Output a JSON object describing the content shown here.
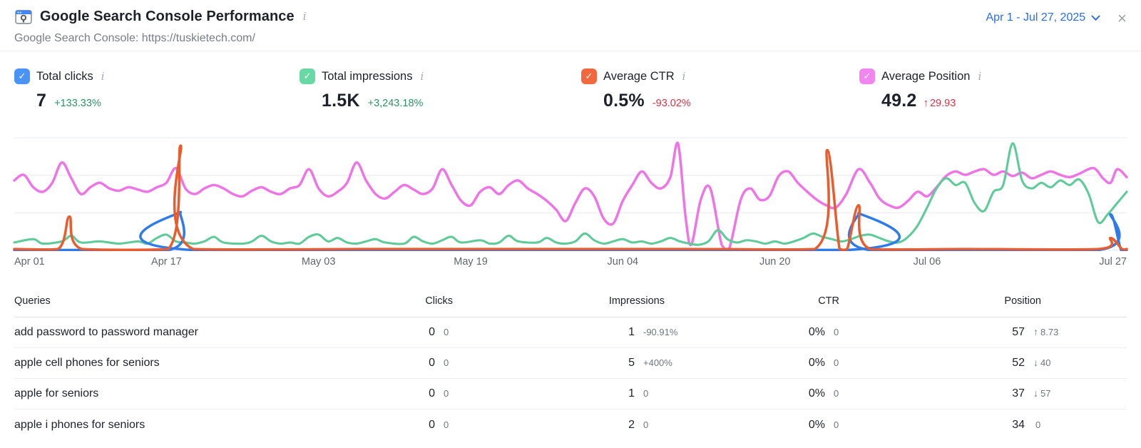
{
  "header": {
    "title": "Google Search Console Performance",
    "subtitle": "Google Search Console: https://tuskietech.com/",
    "date_range": "Apr 1 - Jul 27, 2025",
    "close_glyph": "×",
    "info_glyph": "i"
  },
  "colors": {
    "date_blue": "#2b6ce6",
    "clicks_box": "#4a93f7",
    "impressions_box": "#68d9a4",
    "ctr_box": "#f2683f",
    "position_box": "#f186f1",
    "clicks_line": "#2f7bea",
    "impressions_line": "#5ecb98",
    "ctr_line": "#e95c2d",
    "position_line": "#ed75e4",
    "green_text": "#2e9367",
    "red_text": "#d63547"
  },
  "metrics": [
    {
      "label": "Total clicks",
      "check": "✓",
      "value": "7",
      "delta": "+133.33%",
      "arrow": "",
      "delta_color": "green"
    },
    {
      "label": "Total impressions",
      "check": "✓",
      "value": "1.5K",
      "delta": "+3,243.18%",
      "arrow": "",
      "delta_color": "green"
    },
    {
      "label": "Average CTR",
      "check": "✓",
      "value": "0.5%",
      "delta": "-93.02%",
      "arrow": "",
      "delta_color": "red"
    },
    {
      "label": "Average Position",
      "check": "✓",
      "value": "49.2",
      "delta": "29.93",
      "arrow": "↑",
      "delta_color": "red"
    }
  ],
  "chart_data": {
    "type": "line",
    "title": "",
    "x_range": [
      "Apr 1, 2025",
      "Jul 27, 2025"
    ],
    "x_axis_labels": [
      "Apr 01",
      "Apr 17",
      "May 03",
      "May 19",
      "Jun 04",
      "Jun 20",
      "Jul 06",
      "Jul 27"
    ],
    "label_days": [
      0,
      16,
      32,
      48,
      64,
      80,
      96,
      117
    ],
    "grid": "4 horizontal gridlines, no y tick labels",
    "legend_position": "none (metric cards act as legend)",
    "y_scale": "normalized 0-1 per series",
    "series": [
      {
        "id": "position",
        "name": "Average Position",
        "color": "#ed75e4",
        "width": 3.5,
        "points": [
          [
            0,
            0.62
          ],
          [
            1,
            0.67
          ],
          [
            2,
            0.56
          ],
          [
            3,
            0.52
          ],
          [
            4,
            0.6
          ],
          [
            5,
            0.78
          ],
          [
            6,
            0.64
          ],
          [
            7,
            0.5
          ],
          [
            8,
            0.56
          ],
          [
            9,
            0.6
          ],
          [
            10,
            0.55
          ],
          [
            11,
            0.53
          ],
          [
            12,
            0.56
          ],
          [
            13,
            0.54
          ],
          [
            14,
            0.52
          ],
          [
            15,
            0.56
          ],
          [
            16,
            0.6
          ],
          [
            17,
            0.73
          ],
          [
            18,
            0.55
          ],
          [
            19,
            0.5
          ],
          [
            20,
            0.55
          ],
          [
            21,
            0.58
          ],
          [
            22,
            0.55
          ],
          [
            23,
            0.5
          ],
          [
            24,
            0.48
          ],
          [
            25,
            0.53
          ],
          [
            26,
            0.56
          ],
          [
            27,
            0.52
          ],
          [
            28,
            0.5
          ],
          [
            29,
            0.55
          ],
          [
            30,
            0.58
          ],
          [
            31,
            0.72
          ],
          [
            32,
            0.55
          ],
          [
            33,
            0.48
          ],
          [
            34,
            0.52
          ],
          [
            35,
            0.6
          ],
          [
            36,
            0.78
          ],
          [
            37,
            0.62
          ],
          [
            38,
            0.5
          ],
          [
            39,
            0.46
          ],
          [
            40,
            0.52
          ],
          [
            41,
            0.58
          ],
          [
            42,
            0.54
          ],
          [
            43,
            0.5
          ],
          [
            44,
            0.55
          ],
          [
            45,
            0.72
          ],
          [
            46,
            0.58
          ],
          [
            47,
            0.44
          ],
          [
            48,
            0.4
          ],
          [
            49,
            0.52
          ],
          [
            50,
            0.56
          ],
          [
            51,
            0.5
          ],
          [
            52,
            0.58
          ],
          [
            53,
            0.62
          ],
          [
            54,
            0.55
          ],
          [
            55,
            0.5
          ],
          [
            56,
            0.44
          ],
          [
            57,
            0.36
          ],
          [
            58,
            0.26
          ],
          [
            59,
            0.42
          ],
          [
            60,
            0.55
          ],
          [
            61,
            0.48
          ],
          [
            62,
            0.28
          ],
          [
            63,
            0.24
          ],
          [
            64,
            0.44
          ],
          [
            65,
            0.58
          ],
          [
            66,
            0.7
          ],
          [
            67,
            0.6
          ],
          [
            68,
            0.55
          ],
          [
            69,
            0.65
          ],
          [
            69.8,
            0.95
          ],
          [
            70.6,
            0.3
          ],
          [
            71.2,
            0.05
          ],
          [
            72.2,
            0.45
          ],
          [
            73.2,
            0.55
          ],
          [
            74.4,
            0.05
          ],
          [
            75.2,
            0.02
          ],
          [
            76.4,
            0.45
          ],
          [
            77.4,
            0.55
          ],
          [
            78.4,
            0.45
          ],
          [
            79.4,
            0.48
          ],
          [
            80.4,
            0.66
          ],
          [
            81.4,
            0.7
          ],
          [
            82.4,
            0.6
          ],
          [
            83.4,
            0.52
          ],
          [
            84.4,
            0.45
          ],
          [
            85.4,
            0.4
          ],
          [
            86.4,
            0.38
          ],
          [
            87.5,
            0.5
          ],
          [
            88.8,
            0.72
          ],
          [
            90,
            0.6
          ],
          [
            91,
            0.46
          ],
          [
            92,
            0.4
          ],
          [
            93,
            0.38
          ],
          [
            94,
            0.44
          ],
          [
            95,
            0.52
          ],
          [
            96,
            0.48
          ],
          [
            97,
            0.56
          ],
          [
            98,
            0.66
          ],
          [
            99,
            0.7
          ],
          [
            100,
            0.67
          ],
          [
            101,
            0.7
          ],
          [
            102,
            0.72
          ],
          [
            103,
            0.67
          ],
          [
            104,
            0.7
          ],
          [
            105,
            0.66
          ],
          [
            106,
            0.69
          ],
          [
            107,
            0.64
          ],
          [
            108,
            0.67
          ],
          [
            109,
            0.7
          ],
          [
            110,
            0.67
          ],
          [
            111,
            0.65
          ],
          [
            112,
            0.68
          ],
          [
            113.5,
            0.73
          ],
          [
            114.5,
            0.64
          ],
          [
            115.3,
            0.6
          ],
          [
            116,
            0.72
          ],
          [
            117,
            0.65
          ]
        ]
      },
      {
        "id": "impressions",
        "name": "Total impressions",
        "color": "#5ecb98",
        "width": 3.1,
        "points": [
          [
            0,
            0.07
          ],
          [
            2,
            0.1
          ],
          [
            3,
            0.06
          ],
          [
            5,
            0.08
          ],
          [
            6,
            0.13
          ],
          [
            7,
            0.07
          ],
          [
            9,
            0.08
          ],
          [
            11,
            0.06
          ],
          [
            13,
            0.08
          ],
          [
            14,
            0.06
          ],
          [
            15,
            0.11
          ],
          [
            16,
            0.14
          ],
          [
            17,
            0.08
          ],
          [
            18,
            0.07
          ],
          [
            19,
            0.06
          ],
          [
            20,
            0.08
          ],
          [
            21,
            0.12
          ],
          [
            22,
            0.07
          ],
          [
            24,
            0.06
          ],
          [
            25,
            0.08
          ],
          [
            26,
            0.13
          ],
          [
            27,
            0.08
          ],
          [
            28,
            0.06
          ],
          [
            29,
            0.07
          ],
          [
            30,
            0.06
          ],
          [
            31,
            0.12
          ],
          [
            32,
            0.14
          ],
          [
            33,
            0.08
          ],
          [
            34,
            0.11
          ],
          [
            35,
            0.07
          ],
          [
            36,
            0.06
          ],
          [
            37,
            0.08
          ],
          [
            38,
            0.1
          ],
          [
            39,
            0.07
          ],
          [
            41,
            0.06
          ],
          [
            42,
            0.12
          ],
          [
            43,
            0.08
          ],
          [
            44,
            0.06
          ],
          [
            45,
            0.09
          ],
          [
            46,
            0.12
          ],
          [
            47,
            0.07
          ],
          [
            49,
            0.09
          ],
          [
            50,
            0.06
          ],
          [
            51,
            0.07
          ],
          [
            52,
            0.13
          ],
          [
            53,
            0.08
          ],
          [
            55,
            0.07
          ],
          [
            56,
            0.11
          ],
          [
            57,
            0.07
          ],
          [
            58,
            0.06
          ],
          [
            59,
            0.08
          ],
          [
            60,
            0.15
          ],
          [
            61,
            0.09
          ],
          [
            62,
            0.06
          ],
          [
            63,
            0.08
          ],
          [
            64,
            0.1
          ],
          [
            65,
            0.07
          ],
          [
            66,
            0.08
          ],
          [
            67,
            0.06
          ],
          [
            68,
            0.08
          ],
          [
            69,
            0.11
          ],
          [
            70,
            0.08
          ],
          [
            71,
            0.06
          ],
          [
            72,
            0.05
          ],
          [
            73,
            0.08
          ],
          [
            74,
            0.18
          ],
          [
            75,
            0.1
          ],
          [
            76,
            0.07
          ],
          [
            77,
            0.09
          ],
          [
            78,
            0.08
          ],
          [
            79,
            0.06
          ],
          [
            80,
            0.08
          ],
          [
            81,
            0.06
          ],
          [
            82,
            0.08
          ],
          [
            83,
            0.11
          ],
          [
            84,
            0.15
          ],
          [
            85,
            0.12
          ],
          [
            86,
            0.1
          ],
          [
            87,
            0.08
          ],
          [
            88,
            0.1
          ],
          [
            89,
            0.13
          ],
          [
            90,
            0.14
          ],
          [
            91,
            0.11
          ],
          [
            92,
            0.08
          ],
          [
            93,
            0.07
          ],
          [
            94,
            0.12
          ],
          [
            95,
            0.22
          ],
          [
            96,
            0.38
          ],
          [
            97,
            0.55
          ],
          [
            98,
            0.64
          ],
          [
            99,
            0.58
          ],
          [
            100,
            0.6
          ],
          [
            101,
            0.42
          ],
          [
            102,
            0.35
          ],
          [
            103,
            0.52
          ],
          [
            104,
            0.58
          ],
          [
            105,
            0.95
          ],
          [
            106,
            0.62
          ],
          [
            107,
            0.55
          ],
          [
            108,
            0.6
          ],
          [
            109,
            0.56
          ],
          [
            110,
            0.62
          ],
          [
            111,
            0.58
          ],
          [
            112,
            0.63
          ],
          [
            113,
            0.5
          ],
          [
            114,
            0.25
          ],
          [
            115,
            0.32
          ],
          [
            116,
            0.42
          ],
          [
            117,
            0.52
          ]
        ]
      },
      {
        "id": "clicks",
        "name": "Total clicks",
        "color": "#2f7bea",
        "width": 3.5,
        "points": [
          [
            0,
            0.004
          ],
          [
            16.3,
            0.004
          ],
          [
            17.5,
            0.34
          ],
          [
            18.7,
            0.004
          ],
          [
            87.7,
            0.004
          ],
          [
            88.8,
            0.33
          ],
          [
            89.9,
            0.004
          ],
          [
            114.1,
            0.004
          ],
          [
            115.3,
            0.32
          ],
          [
            116.4,
            0.004
          ],
          [
            117,
            0.004
          ]
        ]
      },
      {
        "id": "ctr",
        "name": "Average CTR",
        "color": "#e95c2d",
        "width": 3.5,
        "points": [
          [
            0,
            0.012
          ],
          [
            4.6,
            0.012
          ],
          [
            5.8,
            0.3
          ],
          [
            7.1,
            0.012
          ],
          [
            16.2,
            0.012
          ],
          [
            17.5,
            0.93
          ],
          [
            18.8,
            0.012
          ],
          [
            40,
            0.012
          ],
          [
            70,
            0.012
          ],
          [
            84.2,
            0.012
          ],
          [
            85.5,
            0.89
          ],
          [
            86.8,
            0.012
          ],
          [
            87.6,
            0.012
          ],
          [
            88.8,
            0.4
          ],
          [
            90,
            0.012
          ],
          [
            100,
            0.012
          ],
          [
            114,
            0.012
          ],
          [
            115.3,
            0.11
          ],
          [
            116.5,
            0.012
          ],
          [
            117,
            0.012
          ]
        ]
      }
    ]
  },
  "table": {
    "columns": [
      "Queries",
      "Clicks",
      "Impressions",
      "CTR",
      "Position"
    ],
    "rows": [
      {
        "query": "add password to password manager",
        "clicks": {
          "value": "0",
          "delta": "0",
          "delta_color": "gray"
        },
        "impressions": {
          "value": "1",
          "delta": "-90.91%",
          "delta_color": "red"
        },
        "ctr": {
          "value": "0%",
          "delta": "0",
          "delta_color": "gray"
        },
        "position": {
          "value": "57",
          "arrow": "↑",
          "delta": "8.73",
          "delta_color": "red"
        }
      },
      {
        "query": "apple cell phones for seniors",
        "clicks": {
          "value": "0",
          "delta": "0",
          "delta_color": "gray"
        },
        "impressions": {
          "value": "5",
          "delta": "+400%",
          "delta_color": "green"
        },
        "ctr": {
          "value": "0%",
          "delta": "0",
          "delta_color": "gray"
        },
        "position": {
          "value": "52",
          "arrow": "↓",
          "delta": "40",
          "delta_color": "green"
        }
      },
      {
        "query": "apple for seniors",
        "clicks": {
          "value": "0",
          "delta": "0",
          "delta_color": "gray"
        },
        "impressions": {
          "value": "1",
          "delta": "0",
          "delta_color": "gray"
        },
        "ctr": {
          "value": "0%",
          "delta": "0",
          "delta_color": "gray"
        },
        "position": {
          "value": "37",
          "arrow": "↓",
          "delta": "57",
          "delta_color": "green"
        }
      },
      {
        "query": "apple i phones for seniors",
        "clicks": {
          "value": "0",
          "delta": "0",
          "delta_color": "gray"
        },
        "impressions": {
          "value": "2",
          "delta": "0",
          "delta_color": "gray"
        },
        "ctr": {
          "value": "0%",
          "delta": "0",
          "delta_color": "gray"
        },
        "position": {
          "value": "34",
          "arrow": "",
          "delta": "0",
          "delta_color": "gray"
        }
      }
    ]
  }
}
